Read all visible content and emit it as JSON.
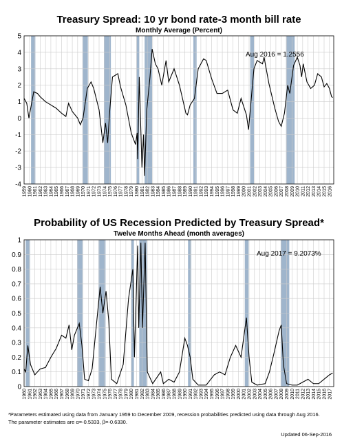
{
  "chart_data": [
    {
      "type": "line",
      "title": "Treasury Spread: 10 yr bond rate-3 month bill rate",
      "subtitle": "Monthly Average (Percent)",
      "annotation": "Aug 2016 = 1.2556",
      "color": "#000000",
      "grid": true,
      "recession_color": "#9fb5cc",
      "xlim": [
        1959,
        2016.8
      ],
      "ylim": [
        -4,
        5
      ],
      "yticks": [
        -4,
        -3,
        -2,
        -1,
        0,
        1,
        2,
        3,
        4,
        5
      ],
      "xticks": [
        1959,
        1960,
        1961,
        1962,
        1963,
        1964,
        1965,
        1966,
        1967,
        1968,
        1969,
        1970,
        1971,
        1972,
        1973,
        1974,
        1975,
        1976,
        1977,
        1978,
        1979,
        1980,
        1981,
        1982,
        1983,
        1984,
        1985,
        1986,
        1987,
        1988,
        1989,
        1990,
        1991,
        1992,
        1993,
        1994,
        1995,
        1996,
        1997,
        1998,
        1999,
        2000,
        2001,
        2002,
        2003,
        2004,
        2005,
        2006,
        2007,
        2008,
        2009,
        2010,
        2011,
        2012,
        2013,
        2014,
        2015,
        2016
      ],
      "recessions": [
        [
          1960.3,
          1961.1
        ],
        [
          1969.9,
          1970.9
        ],
        [
          1973.9,
          1975.2
        ],
        [
          1980.0,
          1980.5
        ],
        [
          1981.5,
          1982.9
        ],
        [
          1990.6,
          1991.2
        ],
        [
          2001.2,
          2001.9
        ],
        [
          2007.9,
          2009.5
        ]
      ],
      "x": [
        1959.0,
        1959.5,
        1959.9,
        1960.8,
        1961.5,
        1962,
        1963,
        1964,
        1965,
        1966,
        1966.8,
        1967.3,
        1968,
        1969,
        1969.5,
        1970,
        1970.8,
        1971.5,
        1972,
        1973,
        1973.7,
        1974.2,
        1974.6,
        1975,
        1975.5,
        1976.5,
        1977,
        1978,
        1979,
        1979.8,
        1980.1,
        1980.2,
        1980.5,
        1981.0,
        1981.3,
        1981.5,
        1981.9,
        1982.5,
        1982.9,
        1983.5,
        1984,
        1984.7,
        1985.5,
        1986,
        1987,
        1988,
        1989.2,
        1989.5,
        1990,
        1990.8,
        1991.5,
        1992.5,
        1993,
        1994,
        1995,
        1996,
        1997,
        1998,
        1998.8,
        1999.5,
        2000.5,
        2000.9,
        2001.3,
        2001.9,
        2002.5,
        2003.5,
        2003.8,
        2004.7,
        2005.8,
        2006.5,
        2007.0,
        2007.6,
        2008.2,
        2008.6,
        2009.3,
        2010,
        2010.5,
        2010.8,
        2011.1,
        2011.8,
        2012.5,
        2013.2,
        2013.8,
        2014.5,
        2015.0,
        2015.5,
        2016.0,
        2016.4,
        2016.6
      ],
      "values": [
        1.2,
        0.9,
        0.0,
        1.6,
        1.5,
        1.3,
        1.0,
        0.8,
        0.6,
        0.3,
        0.1,
        0.9,
        0.4,
        0.0,
        -0.4,
        0.0,
        1.8,
        2.2,
        1.8,
        0.5,
        -1.5,
        -0.3,
        -1.5,
        0.5,
        2.5,
        2.7,
        1.9,
        0.8,
        -0.9,
        -1.6,
        -0.9,
        -2.5,
        2.5,
        -3.0,
        -1.0,
        -3.5,
        0.5,
        2.5,
        4.2,
        3.3,
        3.0,
        2.0,
        3.5,
        2.2,
        3.0,
        2.0,
        0.3,
        0.2,
        0.8,
        1.2,
        3.0,
        3.6,
        3.5,
        2.4,
        1.5,
        1.5,
        1.7,
        0.5,
        0.3,
        1.2,
        0.2,
        -0.7,
        0.8,
        3.0,
        3.5,
        3.3,
        3.7,
        2.1,
        0.6,
        -0.2,
        -0.5,
        0.3,
        2.0,
        1.5,
        3.2,
        3.7,
        3.2,
        2.5,
        3.3,
        2.2,
        1.8,
        2.0,
        2.7,
        2.5,
        1.9,
        2.1,
        1.8,
        1.3,
        1.25
      ]
    },
    {
      "type": "line",
      "title": "Probability of US Recession Predicted by Treasury Spread*",
      "subtitle": "Twelve Months Ahead (month averages)",
      "annotation": "Aug 2017 = 9.2073%",
      "color": "#000000",
      "grid": true,
      "recession_color": "#9fb5cc",
      "xlim": [
        1960,
        2017.8
      ],
      "ylim": [
        0,
        1
      ],
      "yticks": [
        0,
        0.1,
        0.2,
        0.3,
        0.4,
        0.5,
        0.6,
        0.7,
        0.8,
        0.9,
        1
      ],
      "xticks": [
        1960,
        1961,
        1962,
        1963,
        1964,
        1965,
        1966,
        1967,
        1968,
        1969,
        1970,
        1971,
        1972,
        1973,
        1974,
        1975,
        1976,
        1977,
        1978,
        1979,
        1980,
        1981,
        1982,
        1983,
        1984,
        1985,
        1986,
        1987,
        1988,
        1989,
        1990,
        1991,
        1992,
        1993,
        1994,
        1995,
        1996,
        1997,
        1998,
        1999,
        2000,
        2001,
        2002,
        2003,
        2004,
        2005,
        2006,
        2007,
        2008,
        2009,
        2010,
        2011,
        2012,
        2013,
        2014,
        2015,
        2016,
        2017
      ],
      "recessions": [
        [
          1960.3,
          1961.1
        ],
        [
          1969.9,
          1970.9
        ],
        [
          1973.9,
          1975.2
        ],
        [
          1980.0,
          1980.5
        ],
        [
          1981.5,
          1982.9
        ],
        [
          1990.6,
          1991.2
        ],
        [
          2001.2,
          2001.9
        ],
        [
          2007.9,
          2009.5
        ]
      ],
      "x": [
        1960,
        1960.3,
        1960.7,
        1961.2,
        1962,
        1963,
        1964,
        1965,
        1966,
        1967,
        1967.8,
        1968.4,
        1968.9,
        1969.4,
        1970.3,
        1970.8,
        1971.3,
        1972,
        1972.7,
        1973.5,
        1974.2,
        1974.7,
        1975.3,
        1975.8,
        1976.3,
        1977.3,
        1978.5,
        1979.5,
        1980.3,
        1980.6,
        1981.2,
        1981.4,
        1981.8,
        1982.1,
        1982.6,
        1983.0,
        1984,
        1985.5,
        1986,
        1987,
        1988,
        1989,
        1990.0,
        1990.5,
        1991,
        1991.5,
        1992.5,
        1994,
        1995.5,
        1996.5,
        1997.5,
        1998.5,
        1999.5,
        2000.5,
        2001.5,
        2002,
        2002.5,
        2003.5,
        2005,
        2005.8,
        2006.6,
        2007.6,
        2008.0,
        2008.4,
        2009,
        2010,
        2011,
        2012,
        2013,
        2014,
        2015,
        2016,
        2017.0,
        2017.6
      ],
      "values": [
        0.12,
        0.1,
        0.28,
        0.15,
        0.08,
        0.12,
        0.13,
        0.2,
        0.26,
        0.35,
        0.33,
        0.42,
        0.25,
        0.35,
        0.43,
        0.28,
        0.05,
        0.04,
        0.12,
        0.42,
        0.68,
        0.5,
        0.65,
        0.45,
        0.05,
        0.02,
        0.15,
        0.6,
        0.8,
        0.2,
        0.96,
        0.4,
        0.98,
        0.4,
        0.98,
        0.1,
        0.02,
        0.1,
        0.02,
        0.05,
        0.03,
        0.1,
        0.33,
        0.28,
        0.2,
        0.05,
        0.01,
        0.01,
        0.08,
        0.1,
        0.08,
        0.2,
        0.28,
        0.2,
        0.47,
        0.2,
        0.03,
        0.01,
        0.02,
        0.1,
        0.22,
        0.38,
        0.42,
        0.15,
        0.02,
        0.01,
        0.01,
        0.03,
        0.05,
        0.02,
        0.02,
        0.05,
        0.08,
        0.092
      ]
    }
  ],
  "footnote": [
    "*Parameters estimated using data from January 1959 to December 2009, recession probabilities predicted using data through Aug 2016.",
    "The parameter estimates are α=-0.5333, β=-0.6330."
  ],
  "updated": "Updated 06-Sep-2016"
}
